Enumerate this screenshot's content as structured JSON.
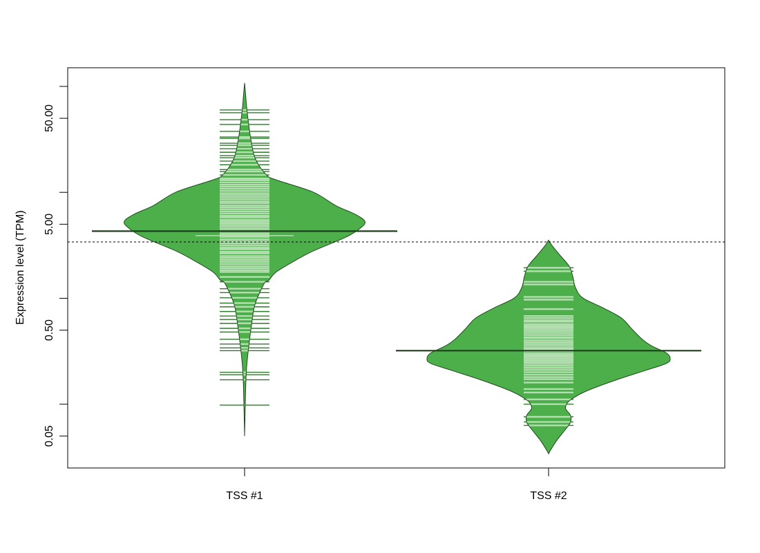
{
  "chart_data": {
    "type": "beanplot",
    "title": "",
    "xlabel": "",
    "ylabel": "Expression level (TPM)",
    "y_scale": "log10",
    "ylim": [
      0.025,
      150
    ],
    "y_ticks": [
      {
        "value": 100,
        "label": ""
      },
      {
        "value": 50,
        "label": "50.00"
      },
      {
        "value": 10,
        "label": ""
      },
      {
        "value": 5,
        "label": "5.00"
      },
      {
        "value": 1,
        "label": ""
      },
      {
        "value": 0.5,
        "label": "0.50"
      },
      {
        "value": 0.1,
        "label": ""
      },
      {
        "value": 0.05,
        "label": "0.05"
      }
    ],
    "categories": [
      "TSS #1",
      "TSS #2"
    ],
    "overall_line": 3.4,
    "grid": false,
    "legend": "none",
    "colors": {
      "bean_fill": "#4daf4a",
      "bean_border": "#1f4a1d",
      "line_outside": "#2f7a2c",
      "line_inside": "#b3dfb0",
      "mean_line": "#1f3d1c"
    },
    "series": [
      {
        "category": "TSS #1",
        "mean": 4.3,
        "median": 3.9,
        "density": [
          [
            107.7,
            0
          ],
          [
            79.8,
            0.01
          ],
          [
            59,
            0.02
          ],
          [
            32.3,
            0.05
          ],
          [
            20.6,
            0.09
          ],
          [
            14.6,
            0.18
          ],
          [
            13.1,
            0.26
          ],
          [
            10.1,
            0.56
          ],
          [
            7.5,
            0.75
          ],
          [
            6.2,
            0.91
          ],
          [
            5.3,
            0.99
          ],
          [
            4.57,
            0.95
          ],
          [
            3.76,
            0.83
          ],
          [
            2.78,
            0.56
          ],
          [
            2.25,
            0.41
          ],
          [
            1.77,
            0.26
          ],
          [
            1.48,
            0.2
          ],
          [
            1.37,
            0.16
          ],
          [
            0.87,
            0.085
          ],
          [
            0.56,
            0.057
          ],
          [
            0.35,
            0.034
          ],
          [
            0.225,
            0.017
          ],
          [
            0.144,
            0.009
          ],
          [
            0.05,
            0
          ]
        ],
        "observations": [
          59.9,
          56.4,
          48.5,
          43.7,
          37.6,
          33.3,
          32.3,
          29.1,
          27.8,
          25.8,
          23.9,
          22.2,
          21.2,
          19.7,
          18.2,
          16.4,
          15.7,
          14.6,
          13.5,
          13,
          12.4,
          11.8,
          11.3,
          10.8,
          10.3,
          9.8,
          9.4,
          9,
          8.6,
          8.2,
          7.9,
          7.5,
          7.2,
          6.9,
          6.6,
          6.3,
          6,
          5.8,
          5.5,
          5.3,
          5.1,
          4.9,
          4.7,
          4.5,
          4.3,
          4.1,
          3.95,
          3.8,
          3.6,
          3.45,
          3.3,
          3.15,
          3,
          2.9,
          2.75,
          2.65,
          2.5,
          2.4,
          2.3,
          2.2,
          2.1,
          2,
          1.92,
          1.84,
          1.77,
          1.59,
          1.43,
          1.23,
          1.13,
          1.01,
          0.9,
          0.83,
          0.75,
          0.68,
          0.63,
          0.58,
          0.52,
          0.48,
          0.41,
          0.37,
          0.34,
          0.32,
          0.2,
          0.19,
          0.17,
          0.098
        ]
      },
      {
        "category": "TSS #2",
        "mean": 0.32,
        "density": [
          [
            3.54,
            0
          ],
          [
            3.13,
            0.03
          ],
          [
            2.5,
            0.1
          ],
          [
            2.0,
            0.17
          ],
          [
            1.59,
            0.2
          ],
          [
            1.27,
            0.22
          ],
          [
            1.01,
            0.28
          ],
          [
            0.81,
            0.45
          ],
          [
            0.65,
            0.6
          ],
          [
            0.52,
            0.68
          ],
          [
            0.41,
            0.77
          ],
          [
            0.354,
            0.85
          ],
          [
            0.304,
            0.97
          ],
          [
            0.27,
            1.0
          ],
          [
            0.243,
            0.97
          ],
          [
            0.209,
            0.8
          ],
          [
            0.167,
            0.54
          ],
          [
            0.133,
            0.31
          ],
          [
            0.114,
            0.2
          ],
          [
            0.103,
            0.155
          ],
          [
            0.091,
            0.14
          ],
          [
            0.0785,
            0.18
          ],
          [
            0.0676,
            0.18
          ],
          [
            0.058,
            0.14
          ],
          [
            0.046,
            0.07
          ],
          [
            0.037,
            0.017
          ],
          [
            0.034,
            0
          ]
        ],
        "observations": [
          1.94,
          1.8,
          1.43,
          1.35,
          1.03,
          0.97,
          0.79,
          0.68,
          0.65,
          0.62,
          0.6,
          0.57,
          0.55,
          0.53,
          0.51,
          0.49,
          0.47,
          0.45,
          0.43,
          0.42,
          0.4,
          0.385,
          0.37,
          0.355,
          0.34,
          0.33,
          0.315,
          0.3,
          0.29,
          0.28,
          0.27,
          0.26,
          0.25,
          0.24,
          0.23,
          0.22,
          0.21,
          0.2,
          0.19,
          0.18,
          0.172,
          0.16,
          0.139,
          0.129,
          0.111,
          0.1,
          0.076,
          0.068,
          0.063
        ]
      }
    ]
  }
}
